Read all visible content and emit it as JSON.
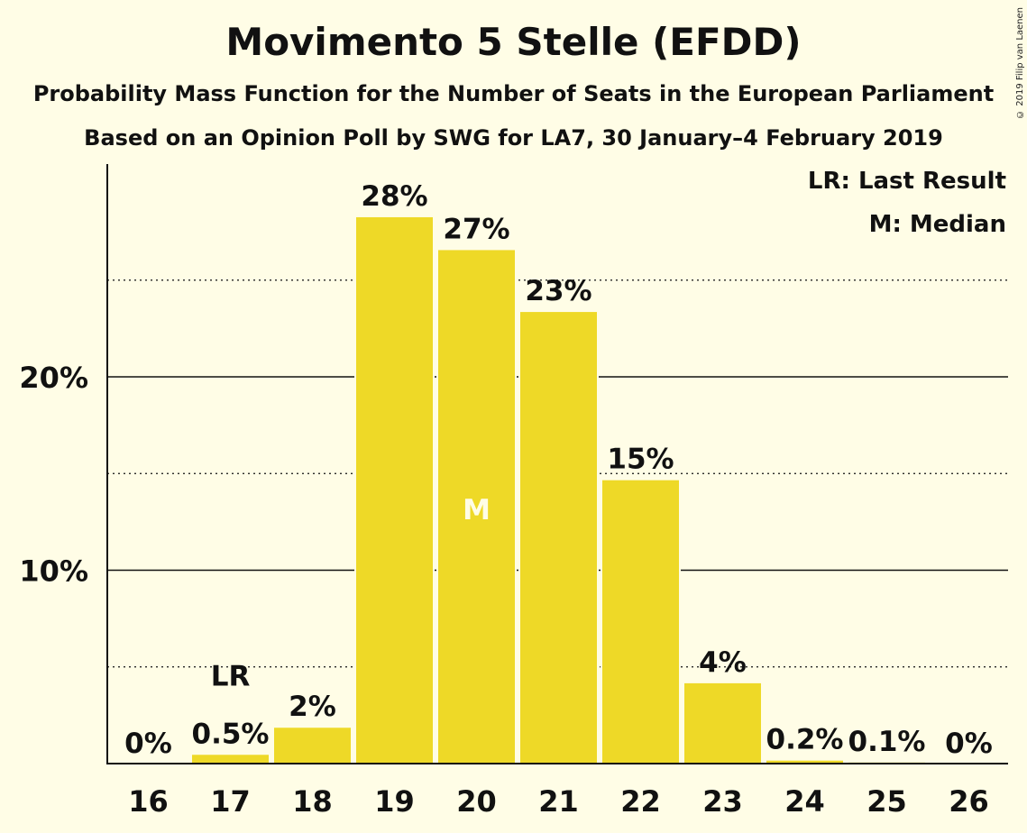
{
  "title": "Movimento 5 Stelle (EFDD)",
  "subtitle": "Probability Mass Function for the Number of Seats in the European Parliament",
  "subtitle2": "Based on an Opinion Poll by SWG for LA7, 30 January–4 February 2019",
  "copyright": "© 2019 Filip van Laenen",
  "colors": {
    "bar": "#eed927",
    "background": "#fffde6",
    "text": "#111111"
  },
  "chart_data": {
    "type": "bar",
    "categories": [
      "16",
      "17",
      "18",
      "19",
      "20",
      "21",
      "22",
      "23",
      "24",
      "25",
      "26"
    ],
    "values": [
      0,
      0.5,
      1.9,
      28.3,
      26.6,
      23.4,
      14.7,
      4.2,
      0.2,
      0.1,
      0
    ],
    "value_labels": [
      "0%",
      "0.5%",
      "2%",
      "28%",
      "27%",
      "23%",
      "15%",
      "4%",
      "0.2%",
      "0.1%",
      "0%"
    ],
    "ylim": [
      0,
      31
    ],
    "yticks": [
      10,
      20
    ],
    "ytick_labels": [
      "10%",
      "20%"
    ],
    "minor_gridlines": [
      5,
      15,
      25
    ],
    "last_result": {
      "category": "17",
      "label": "LR"
    },
    "median": {
      "category": "20",
      "label": "M"
    },
    "legend": [
      "LR: Last Result",
      "M: Median"
    ],
    "legend_position": "top-right"
  }
}
